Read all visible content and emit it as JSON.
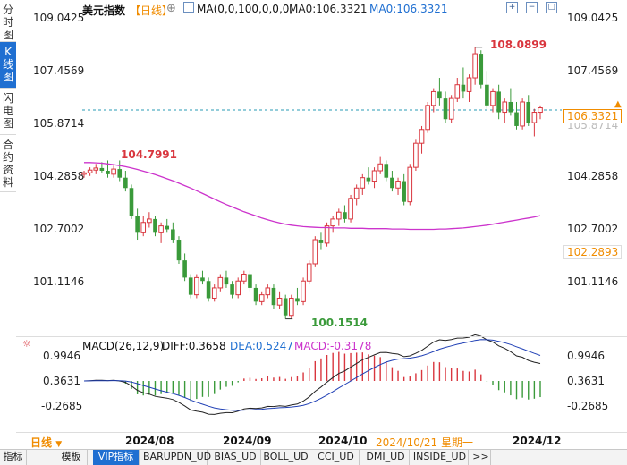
{
  "sidebar": {
    "tabs": [
      "分时图",
      "K线图",
      "闪电图",
      "合约资料"
    ],
    "active": 1
  },
  "header": {
    "symbol": "美元指数",
    "period": "【日线】",
    "ma_label": "MA(0,0,100,0,0,0)",
    "ma0": "MA0:106.3321",
    "ma0_2": "MA0:106.3321"
  },
  "price_axis": {
    "ticks": [
      "109.0425",
      "107.4569",
      "105.8714",
      "104.2858",
      "102.7002",
      "101.1146"
    ],
    "current_price": "106.3321",
    "low_marker": "102.2893"
  },
  "annotations": {
    "high": "108.0899",
    "low": "100.1514",
    "left_high": "104.7991"
  },
  "macd": {
    "label": "MACD(26,12,9)",
    "diff": "DIFF:0.3658",
    "dea": "DEA:0.5247",
    "macd": "MACD:-0.3178",
    "ticks": [
      "0.9946",
      "0.3631",
      "-0.2685"
    ]
  },
  "timeaxis": {
    "period": "日线",
    "dates": [
      "2024/08",
      "2024/09",
      "2024/10",
      "2024/12"
    ],
    "highlight": "2024/10/21 星期一"
  },
  "bottom_tabs": [
    "指标",
    "模板",
    "VIP指标",
    "BARUPDN_UD",
    "BIAS_UD",
    "BOLL_UD",
    "CCI_UD",
    "DMI_UD",
    "INSIDE_UD",
    ">>"
  ],
  "colors": {
    "up": "#d9363e",
    "down": "#3a9a3a",
    "ma": "#cc33cc",
    "accent": "#1f6fd1",
    "price_label": "#f08c00"
  },
  "chart_data": {
    "type": "candlestick",
    "price_range": [
      99.8,
      109.2
    ],
    "candles": [
      [
        104.4,
        104.5,
        104.3,
        104.44
      ],
      [
        104.44,
        104.6,
        104.35,
        104.52
      ],
      [
        104.52,
        104.7,
        104.4,
        104.58
      ],
      [
        104.58,
        104.75,
        104.45,
        104.5
      ],
      [
        104.5,
        104.8,
        104.3,
        104.4
      ],
      [
        104.4,
        104.65,
        104.3,
        104.55
      ],
      [
        104.55,
        104.8,
        104.2,
        104.3
      ],
      [
        104.3,
        104.5,
        103.9,
        104.0
      ],
      [
        104.0,
        104.1,
        103.1,
        103.2
      ],
      [
        103.2,
        103.4,
        102.5,
        102.7
      ],
      [
        102.7,
        103.2,
        102.6,
        103.0
      ],
      [
        103.0,
        103.3,
        102.85,
        103.1
      ],
      [
        103.1,
        103.2,
        102.6,
        102.7
      ],
      [
        102.7,
        103.0,
        102.4,
        102.9
      ],
      [
        102.9,
        103.1,
        102.7,
        102.8
      ],
      [
        102.8,
        103.0,
        102.4,
        102.5
      ],
      [
        102.5,
        102.6,
        101.8,
        101.9
      ],
      [
        101.9,
        102.1,
        101.3,
        101.4
      ],
      [
        101.4,
        101.5,
        100.8,
        100.9
      ],
      [
        100.9,
        101.5,
        100.8,
        101.4
      ],
      [
        101.4,
        101.6,
        101.2,
        101.3
      ],
      [
        101.3,
        101.4,
        100.7,
        100.8
      ],
      [
        100.8,
        101.2,
        100.7,
        101.1
      ],
      [
        101.1,
        101.5,
        101.0,
        101.4
      ],
      [
        101.4,
        101.6,
        101.1,
        101.2
      ],
      [
        101.2,
        101.3,
        100.8,
        100.9
      ],
      [
        100.9,
        101.4,
        100.8,
        101.3
      ],
      [
        101.3,
        101.6,
        101.2,
        101.5
      ],
      [
        101.5,
        101.6,
        101.0,
        101.1
      ],
      [
        101.1,
        101.2,
        100.6,
        100.7
      ],
      [
        100.7,
        101.0,
        100.6,
        100.9
      ],
      [
        100.9,
        101.2,
        100.8,
        101.1
      ],
      [
        101.1,
        101.2,
        100.5,
        100.6
      ],
      [
        100.6,
        101.0,
        100.5,
        100.8
      ],
      [
        100.8,
        100.9,
        100.2,
        100.3
      ],
      [
        100.3,
        100.9,
        100.2,
        100.8
      ],
      [
        100.8,
        101.1,
        100.6,
        100.7
      ],
      [
        100.7,
        101.4,
        100.6,
        101.3
      ],
      [
        101.3,
        101.9,
        101.2,
        101.8
      ],
      [
        101.8,
        102.6,
        101.7,
        102.5
      ],
      [
        102.5,
        102.7,
        102.2,
        102.4
      ],
      [
        102.4,
        103.0,
        102.3,
        102.9
      ],
      [
        102.9,
        103.2,
        102.7,
        103.1
      ],
      [
        103.1,
        103.4,
        102.9,
        103.3
      ],
      [
        103.3,
        103.5,
        103.0,
        103.1
      ],
      [
        103.1,
        103.8,
        103.0,
        103.7
      ],
      [
        103.7,
        104.1,
        103.5,
        104.0
      ],
      [
        104.0,
        104.4,
        103.8,
        104.3
      ],
      [
        104.3,
        104.6,
        104.1,
        104.2
      ],
      [
        104.2,
        104.6,
        104.0,
        104.5
      ],
      [
        104.5,
        104.9,
        104.4,
        104.7
      ],
      [
        104.7,
        104.8,
        104.2,
        104.3
      ],
      [
        104.3,
        104.5,
        103.9,
        104.0
      ],
      [
        104.0,
        104.3,
        103.8,
        104.2
      ],
      [
        104.2,
        104.4,
        103.5,
        103.6
      ],
      [
        103.6,
        104.7,
        103.5,
        104.6
      ],
      [
        104.6,
        105.4,
        104.5,
        105.3
      ],
      [
        105.3,
        105.8,
        105.0,
        105.7
      ],
      [
        105.7,
        106.5,
        105.6,
        106.4
      ],
      [
        106.4,
        106.9,
        106.2,
        106.8
      ],
      [
        106.8,
        107.2,
        106.4,
        106.6
      ],
      [
        106.6,
        106.8,
        105.9,
        106.0
      ],
      [
        106.0,
        106.7,
        105.9,
        106.6
      ],
      [
        106.6,
        107.2,
        106.5,
        107.0
      ],
      [
        107.0,
        107.5,
        106.6,
        106.8
      ],
      [
        106.8,
        107.3,
        106.5,
        107.2
      ],
      [
        107.2,
        108.09,
        107.0,
        107.9
      ],
      [
        107.9,
        108.0,
        106.9,
        107.0
      ],
      [
        107.0,
        107.4,
        106.3,
        106.4
      ],
      [
        106.4,
        106.9,
        106.2,
        106.8
      ],
      [
        106.8,
        107.0,
        106.0,
        106.2
      ],
      [
        106.2,
        106.6,
        105.9,
        106.5
      ],
      [
        106.5,
        106.9,
        106.1,
        106.2
      ],
      [
        106.2,
        106.5,
        105.7,
        105.8
      ],
      [
        105.8,
        106.6,
        105.7,
        106.5
      ],
      [
        106.5,
        106.7,
        105.8,
        105.9
      ],
      [
        105.9,
        106.3,
        105.5,
        106.2
      ],
      [
        106.2,
        106.4,
        106.0,
        106.33
      ]
    ],
    "ma100": [
      104.74,
      104.74,
      104.73,
      104.72,
      104.7,
      104.68,
      104.65,
      104.62,
      104.58,
      104.54,
      104.49,
      104.44,
      104.39,
      104.33,
      104.27,
      104.21,
      104.14,
      104.07,
      104.0,
      103.92,
      103.84,
      103.76,
      103.68,
      103.6,
      103.52,
      103.45,
      103.38,
      103.31,
      103.25,
      103.19,
      103.13,
      103.08,
      103.03,
      102.99,
      102.95,
      102.92,
      102.9,
      102.88,
      102.87,
      102.86,
      102.85,
      102.85,
      102.84,
      102.84,
      102.84,
      102.83,
      102.83,
      102.83,
      102.82,
      102.82,
      102.82,
      102.82,
      102.81,
      102.81,
      102.81,
      102.8,
      102.8,
      102.8,
      102.8,
      102.8,
      102.81,
      102.81,
      102.82,
      102.83,
      102.84,
      102.86,
      102.88,
      102.9,
      102.92,
      102.95,
      102.98,
      103.01,
      103.04,
      103.07,
      103.1,
      103.13,
      103.16,
      103.2
    ]
  }
}
